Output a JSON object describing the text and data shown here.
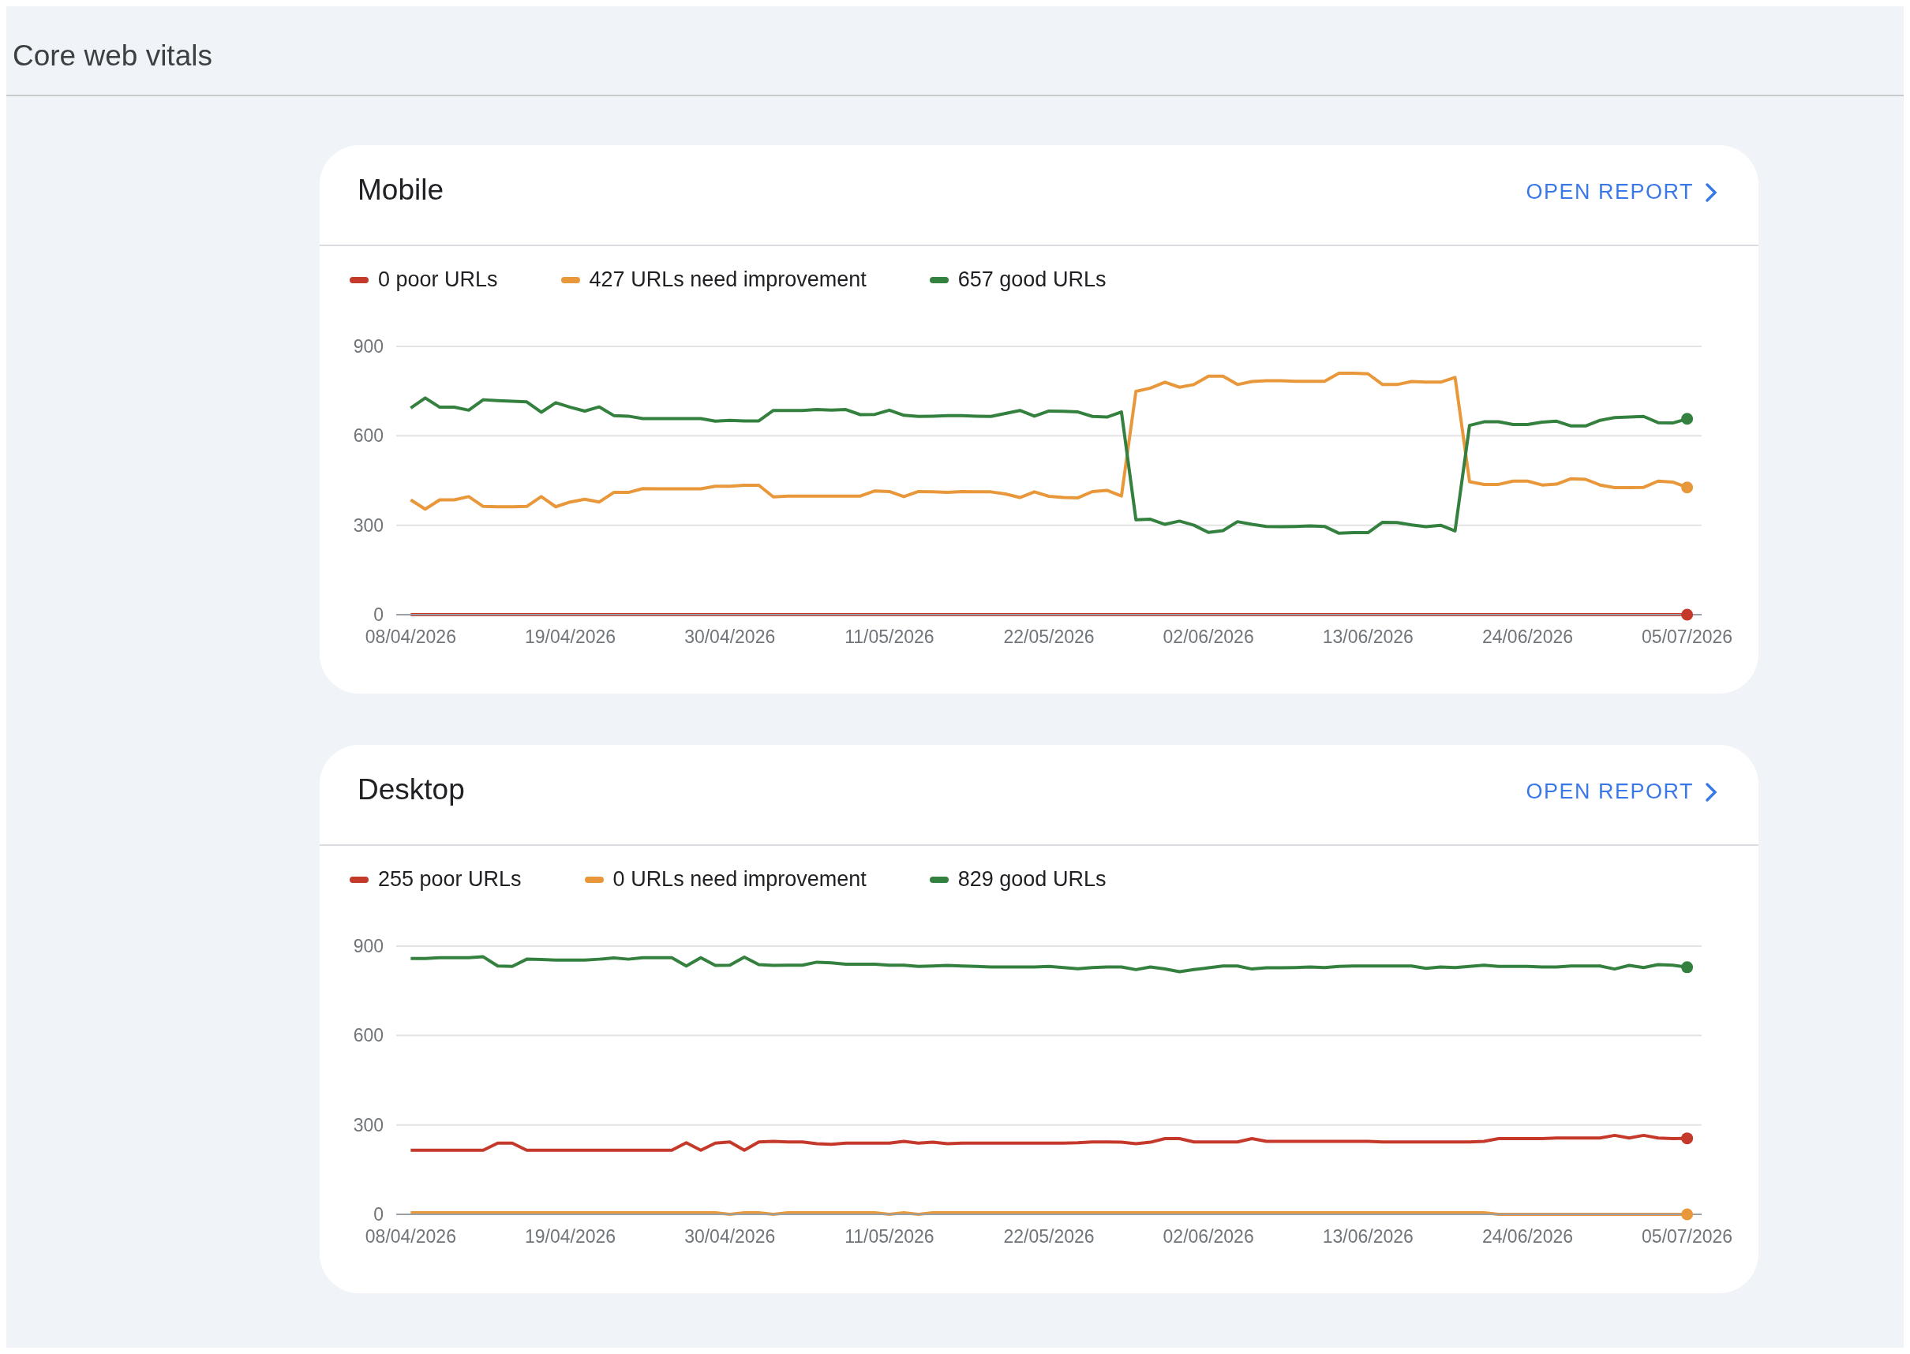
{
  "chart_data": [
    {
      "type": "line",
      "title": "Mobile",
      "annotations": [
        "OPEN REPORT",
        "Core web vitals"
      ],
      "legend": "top left",
      "grid": "y",
      "xlim": [
        "2026-04-07",
        "2026-07-06"
      ],
      "ylim": [
        0,
        900
      ],
      "yticks": [
        0,
        300,
        600,
        900
      ],
      "x": [
        "2026-04-08",
        "2026-04-09",
        "2026-04-10",
        "2026-04-11",
        "2026-04-12",
        "2026-04-13",
        "2026-04-14",
        "2026-04-15",
        "2026-04-16",
        "2026-04-17",
        "2026-04-18",
        "2026-04-19",
        "2026-04-20",
        "2026-04-21",
        "2026-04-22",
        "2026-04-23",
        "2026-04-24",
        "2026-04-25",
        "2026-04-26",
        "2026-04-27",
        "2026-04-28",
        "2026-04-29",
        "2026-04-30",
        "2026-05-01",
        "2026-05-02",
        "2026-05-03",
        "2026-05-04",
        "2026-05-05",
        "2026-05-06",
        "2026-05-07",
        "2026-05-08",
        "2026-05-09",
        "2026-05-10",
        "2026-05-11",
        "2026-05-12",
        "2026-05-13",
        "2026-05-14",
        "2026-05-15",
        "2026-05-16",
        "2026-05-17",
        "2026-05-18",
        "2026-05-19",
        "2026-05-20",
        "2026-05-21",
        "2026-05-22",
        "2026-05-23",
        "2026-05-24",
        "2026-05-25",
        "2026-05-26",
        "2026-05-27",
        "2026-05-28",
        "2026-05-29",
        "2026-05-30",
        "2026-05-31",
        "2026-06-01",
        "2026-06-02",
        "2026-06-03",
        "2026-06-04",
        "2026-06-05",
        "2026-06-06",
        "2026-06-07",
        "2026-06-08",
        "2026-06-09",
        "2026-06-10",
        "2026-06-11",
        "2026-06-12",
        "2026-06-13",
        "2026-06-14",
        "2026-06-15",
        "2026-06-16",
        "2026-06-17",
        "2026-06-18",
        "2026-06-19",
        "2026-06-20",
        "2026-06-21",
        "2026-06-22",
        "2026-06-23",
        "2026-06-24",
        "2026-06-25",
        "2026-06-26",
        "2026-06-27",
        "2026-06-28",
        "2026-06-29",
        "2026-06-30",
        "2026-07-01",
        "2026-07-02",
        "2026-07-03",
        "2026-07-04",
        "2026-07-05"
      ],
      "xticks": [
        {
          "value": "2026-04-08",
          "label": "08/04/2026"
        },
        {
          "value": "2026-04-19",
          "label": "19/04/2026"
        },
        {
          "value": "2026-04-30",
          "label": "30/04/2026"
        },
        {
          "value": "2026-05-11",
          "label": "11/05/2026"
        },
        {
          "value": "2026-05-22",
          "label": "22/05/2026"
        },
        {
          "value": "2026-06-02",
          "label": "02/06/2026"
        },
        {
          "value": "2026-06-13",
          "label": "13/06/2026"
        },
        {
          "value": "2026-06-24",
          "label": "24/06/2026"
        },
        {
          "value": "2026-07-05",
          "label": "05/07/2026"
        }
      ],
      "series": [
        {
          "name": "0 poor URLs",
          "color": "#c5392b",
          "values": [
            0,
            0,
            0,
            0,
            0,
            0,
            0,
            0,
            0,
            0,
            0,
            0,
            0,
            0,
            0,
            0,
            0,
            0,
            0,
            0,
            0,
            0,
            0,
            0,
            0,
            0,
            0,
            0,
            0,
            0,
            0,
            0,
            0,
            0,
            0,
            0,
            0,
            0,
            0,
            0,
            0,
            0,
            0,
            0,
            0,
            0,
            0,
            0,
            0,
            0,
            0,
            0,
            0,
            0,
            0,
            0,
            0,
            0,
            0,
            0,
            0,
            0,
            0,
            0,
            0,
            0,
            0,
            0,
            0,
            0,
            0,
            0,
            0,
            0,
            0,
            0,
            0,
            0,
            0,
            0,
            0,
            0,
            0,
            0,
            0,
            0,
            0,
            0,
            0
          ]
        },
        {
          "name": "427 URLs need improvement",
          "color": "#e8983a",
          "values": [
            385,
            354,
            385,
            385,
            396,
            363,
            362,
            362,
            363,
            396,
            362,
            378,
            387,
            378,
            410,
            410,
            423,
            422,
            422,
            422,
            422,
            431,
            431,
            434,
            434,
            395,
            398,
            398,
            398,
            398,
            398,
            398,
            415,
            413,
            396,
            413,
            412,
            410,
            413,
            412,
            412,
            405,
            393,
            412,
            397,
            393,
            392,
            413,
            417,
            398,
            749,
            760,
            780,
            763,
            772,
            800,
            800,
            772,
            782,
            785,
            785,
            783,
            783,
            783,
            810,
            810,
            808,
            772,
            772,
            782,
            780,
            780,
            796,
            446,
            437,
            437,
            448,
            448,
            435,
            438,
            456,
            454,
            435,
            426,
            426,
            427,
            448,
            445,
            427
          ]
        },
        {
          "name": "657 good URLs",
          "color": "#34803f",
          "values": [
            693,
            727,
            696,
            696,
            686,
            721,
            718,
            716,
            714,
            679,
            711,
            696,
            683,
            697,
            668,
            666,
            658,
            658,
            658,
            658,
            658,
            649,
            652,
            650,
            650,
            685,
            685,
            685,
            688,
            686,
            688,
            671,
            672,
            686,
            669,
            665,
            666,
            668,
            668,
            666,
            665,
            675,
            685,
            666,
            683,
            682,
            680,
            665,
            663,
            680,
            318,
            320,
            303,
            314,
            300,
            276,
            282,
            312,
            303,
            296,
            295,
            296,
            298,
            296,
            273,
            275,
            275,
            310,
            309,
            301,
            295,
            300,
            281,
            635,
            647,
            647,
            638,
            638,
            646,
            649,
            633,
            633,
            652,
            661,
            663,
            665,
            644,
            643,
            657
          ]
        }
      ]
    },
    {
      "type": "line",
      "title": "Desktop",
      "annotations": [
        "OPEN REPORT"
      ],
      "legend": "top left",
      "grid": "y",
      "xlim": [
        "2026-04-07",
        "2026-07-06"
      ],
      "ylim": [
        0,
        900
      ],
      "yticks": [
        0,
        300,
        600,
        900
      ],
      "x": [
        "2026-04-08",
        "2026-04-09",
        "2026-04-10",
        "2026-04-11",
        "2026-04-12",
        "2026-04-13",
        "2026-04-14",
        "2026-04-15",
        "2026-04-16",
        "2026-04-17",
        "2026-04-18",
        "2026-04-19",
        "2026-04-20",
        "2026-04-21",
        "2026-04-22",
        "2026-04-23",
        "2026-04-24",
        "2026-04-25",
        "2026-04-26",
        "2026-04-27",
        "2026-04-28",
        "2026-04-29",
        "2026-04-30",
        "2026-05-01",
        "2026-05-02",
        "2026-05-03",
        "2026-05-04",
        "2026-05-05",
        "2026-05-06",
        "2026-05-07",
        "2026-05-08",
        "2026-05-09",
        "2026-05-10",
        "2026-05-11",
        "2026-05-12",
        "2026-05-13",
        "2026-05-14",
        "2026-05-15",
        "2026-05-16",
        "2026-05-17",
        "2026-05-18",
        "2026-05-19",
        "2026-05-20",
        "2026-05-21",
        "2026-05-22",
        "2026-05-23",
        "2026-05-24",
        "2026-05-25",
        "2026-05-26",
        "2026-05-27",
        "2026-05-28",
        "2026-05-29",
        "2026-05-30",
        "2026-05-31",
        "2026-06-01",
        "2026-06-02",
        "2026-06-03",
        "2026-06-04",
        "2026-06-05",
        "2026-06-06",
        "2026-06-07",
        "2026-06-08",
        "2026-06-09",
        "2026-06-10",
        "2026-06-11",
        "2026-06-12",
        "2026-06-13",
        "2026-06-14",
        "2026-06-15",
        "2026-06-16",
        "2026-06-17",
        "2026-06-18",
        "2026-06-19",
        "2026-06-20",
        "2026-06-21",
        "2026-06-22",
        "2026-06-23",
        "2026-06-24",
        "2026-06-25",
        "2026-06-26",
        "2026-06-27",
        "2026-06-28",
        "2026-06-29",
        "2026-06-30",
        "2026-07-01",
        "2026-07-02",
        "2026-07-03",
        "2026-07-04",
        "2026-07-05"
      ],
      "xticks": [
        {
          "value": "2026-04-08",
          "label": "08/04/2026"
        },
        {
          "value": "2026-04-19",
          "label": "19/04/2026"
        },
        {
          "value": "2026-04-30",
          "label": "30/04/2026"
        },
        {
          "value": "2026-05-11",
          "label": "11/05/2026"
        },
        {
          "value": "2026-05-22",
          "label": "22/05/2026"
        },
        {
          "value": "2026-06-02",
          "label": "02/06/2026"
        },
        {
          "value": "2026-06-13",
          "label": "13/06/2026"
        },
        {
          "value": "2026-06-24",
          "label": "24/06/2026"
        },
        {
          "value": "2026-07-05",
          "label": "05/07/2026"
        }
      ],
      "series": [
        {
          "name": "255 poor URLs",
          "color": "#c5392b",
          "values": [
            215,
            215,
            215,
            215,
            215,
            215,
            239,
            239,
            215,
            215,
            215,
            215,
            215,
            215,
            215,
            215,
            215,
            215,
            215,
            240,
            215,
            239,
            243,
            215,
            243,
            245,
            243,
            243,
            237,
            235,
            239,
            239,
            239,
            239,
            245,
            239,
            242,
            237,
            239,
            239,
            239,
            239,
            239,
            239,
            239,
            239,
            240,
            243,
            243,
            242,
            237,
            242,
            254,
            254,
            243,
            243,
            243,
            243,
            254,
            245,
            245,
            245,
            245,
            245,
            245,
            245,
            245,
            243,
            243,
            243,
            243,
            243,
            243,
            243,
            245,
            254,
            254,
            254,
            254,
            256,
            256,
            256,
            256,
            265,
            256,
            265,
            256,
            254,
            255
          ]
        },
        {
          "name": "0 URLs need improvement",
          "color": "#e8983a",
          "values": [
            5,
            5,
            5,
            5,
            5,
            5,
            5,
            5,
            5,
            5,
            5,
            5,
            5,
            5,
            5,
            5,
            5,
            5,
            5,
            5,
            5,
            5,
            0,
            5,
            5,
            0,
            5,
            5,
            5,
            5,
            5,
            5,
            5,
            0,
            5,
            0,
            5,
            5,
            5,
            5,
            5,
            5,
            5,
            5,
            5,
            5,
            5,
            5,
            5,
            5,
            5,
            5,
            5,
            5,
            5,
            5,
            5,
            5,
            5,
            5,
            5,
            5,
            5,
            5,
            5,
            5,
            5,
            5,
            5,
            5,
            5,
            5,
            5,
            5,
            5,
            0,
            0,
            0,
            0,
            0,
            0,
            0,
            0,
            0,
            0,
            0,
            0,
            0,
            0
          ]
        },
        {
          "name": "829 good URLs",
          "color": "#34803f",
          "values": [
            858,
            858,
            861,
            861,
            861,
            864,
            833,
            832,
            856,
            855,
            853,
            853,
            853,
            856,
            860,
            856,
            861,
            861,
            861,
            833,
            861,
            835,
            836,
            863,
            838,
            835,
            836,
            836,
            846,
            844,
            839,
            839,
            839,
            836,
            836,
            832,
            833,
            835,
            833,
            832,
            830,
            830,
            830,
            830,
            832,
            828,
            824,
            828,
            830,
            830,
            821,
            830,
            823,
            814,
            821,
            827,
            833,
            833,
            823,
            827,
            827,
            828,
            830,
            828,
            832,
            833,
            833,
            833,
            833,
            833,
            825,
            830,
            828,
            832,
            836,
            832,
            832,
            832,
            830,
            830,
            833,
            833,
            833,
            823,
            835,
            828,
            838,
            836,
            829
          ]
        }
      ]
    }
  ]
}
